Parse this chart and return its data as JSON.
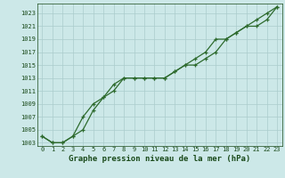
{
  "title": "Graphe pression niveau de la mer (hPa)",
  "line1_x": [
    0,
    1,
    2,
    3,
    4,
    5,
    6,
    7,
    8,
    9,
    10,
    11,
    12,
    13,
    14,
    15,
    16,
    17,
    18,
    19,
    20,
    21,
    22,
    23
  ],
  "line1_y": [
    1004,
    1003,
    1003,
    1004,
    1005,
    1008,
    1010,
    1011,
    1013,
    1013,
    1013,
    1013,
    1013,
    1014,
    1015,
    1015,
    1016,
    1017,
    1019,
    1020,
    1021,
    1021,
    1022,
    1024
  ],
  "line2_x": [
    0,
    1,
    2,
    3,
    4,
    5,
    6,
    7,
    8,
    9,
    10,
    11,
    12,
    13,
    14,
    15,
    16,
    17,
    18,
    19,
    20,
    21,
    22,
    23
  ],
  "line2_y": [
    1004,
    1003,
    1003,
    1004,
    1007,
    1009,
    1010,
    1012,
    1013,
    1013,
    1013,
    1013,
    1013,
    1014,
    1015,
    1016,
    1017,
    1019,
    1019,
    1020,
    1021,
    1022,
    1023,
    1024
  ],
  "line_color": "#2d6a2d",
  "marker": "+",
  "background_color": "#cce8e8",
  "grid_color": "#aacccc",
  "ylim": [
    1002.5,
    1024.5
  ],
  "yticks": [
    1003,
    1005,
    1007,
    1009,
    1011,
    1013,
    1015,
    1017,
    1019,
    1021,
    1023
  ],
  "xlim": [
    -0.5,
    23.5
  ],
  "xticks": [
    0,
    1,
    2,
    3,
    4,
    5,
    6,
    7,
    8,
    9,
    10,
    11,
    12,
    13,
    14,
    15,
    16,
    17,
    18,
    19,
    20,
    21,
    22,
    23
  ],
  "title_fontsize": 6.5,
  "tick_fontsize": 5.0,
  "title_color": "#1a4a1a",
  "tick_color": "#1a4a1a"
}
